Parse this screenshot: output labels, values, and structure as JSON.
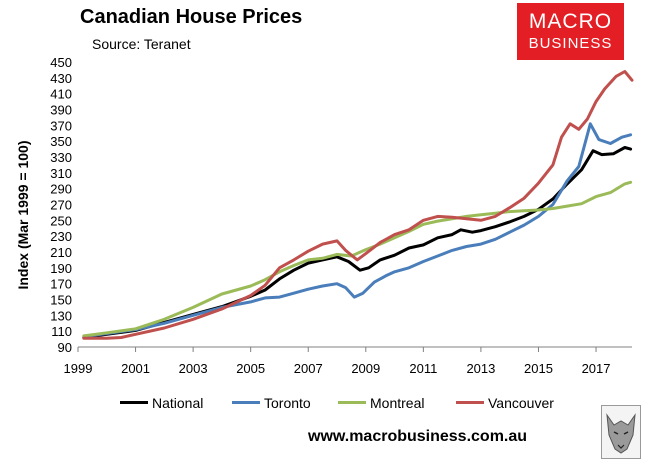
{
  "header": {
    "title": "Canadian House Prices",
    "subtitle": "Source: Teranet"
  },
  "logo": {
    "line1": "MACRO",
    "line2": "BUSINESS",
    "color": "#e31e24"
  },
  "footer": {
    "website": "www.macrobusiness.com.au",
    "wolf_icon": "wolf-logo-icon"
  },
  "chart_data": {
    "type": "line",
    "title": "Canadian House Prices",
    "ylabel": "Index (Mar 1999 = 100)",
    "xlabel": "",
    "xlim": [
      1999,
      2018.25
    ],
    "ylim": [
      90,
      450
    ],
    "yticks": [
      90,
      110,
      130,
      150,
      170,
      190,
      210,
      230,
      250,
      270,
      290,
      310,
      330,
      350,
      370,
      390,
      410,
      430,
      450
    ],
    "xticks": [
      1999,
      2001,
      2003,
      2005,
      2007,
      2009,
      2011,
      2013,
      2015,
      2017
    ],
    "grid": false,
    "legend_position": "bottom",
    "series": [
      {
        "name": "National",
        "color": "#000000",
        "points": [
          [
            1999.2,
            102
          ],
          [
            2000,
            106
          ],
          [
            2001,
            111
          ],
          [
            2002,
            121
          ],
          [
            2003,
            131
          ],
          [
            2004,
            141
          ],
          [
            2005,
            154
          ],
          [
            2005.5,
            162
          ],
          [
            2006,
            176
          ],
          [
            2006.5,
            187
          ],
          [
            2007,
            196
          ],
          [
            2007.5,
            200
          ],
          [
            2008,
            204
          ],
          [
            2008.4,
            198
          ],
          [
            2008.8,
            187
          ],
          [
            2009.1,
            190
          ],
          [
            2009.5,
            200
          ],
          [
            2010,
            206
          ],
          [
            2010.5,
            215
          ],
          [
            2011,
            219
          ],
          [
            2011.5,
            228
          ],
          [
            2012,
            232
          ],
          [
            2012.3,
            238
          ],
          [
            2012.7,
            235
          ],
          [
            2013,
            237
          ],
          [
            2013.5,
            242
          ],
          [
            2014,
            248
          ],
          [
            2014.5,
            255
          ],
          [
            2015,
            264
          ],
          [
            2015.5,
            277
          ],
          [
            2016,
            296
          ],
          [
            2016.5,
            314
          ],
          [
            2016.9,
            338
          ],
          [
            2017.2,
            333
          ],
          [
            2017.6,
            334
          ],
          [
            2018,
            342
          ],
          [
            2018.2,
            340
          ]
        ]
      },
      {
        "name": "Toronto",
        "color": "#4a7ebb",
        "points": [
          [
            1999.2,
            103
          ],
          [
            2000,
            107
          ],
          [
            2001,
            112
          ],
          [
            2002,
            120
          ],
          [
            2003,
            130
          ],
          [
            2004,
            140
          ],
          [
            2005,
            147
          ],
          [
            2005.5,
            152
          ],
          [
            2006,
            153
          ],
          [
            2006.5,
            158
          ],
          [
            2007,
            163
          ],
          [
            2007.5,
            167
          ],
          [
            2008,
            170
          ],
          [
            2008.3,
            165
          ],
          [
            2008.6,
            153
          ],
          [
            2008.9,
            158
          ],
          [
            2009.3,
            172
          ],
          [
            2009.7,
            180
          ],
          [
            2010,
            185
          ],
          [
            2010.5,
            190
          ],
          [
            2011,
            198
          ],
          [
            2011.5,
            205
          ],
          [
            2012,
            212
          ],
          [
            2012.5,
            217
          ],
          [
            2013,
            220
          ],
          [
            2013.5,
            226
          ],
          [
            2014,
            235
          ],
          [
            2014.5,
            244
          ],
          [
            2015,
            255
          ],
          [
            2015.5,
            270
          ],
          [
            2016,
            300
          ],
          [
            2016.4,
            318
          ],
          [
            2016.8,
            372
          ],
          [
            2017.1,
            352
          ],
          [
            2017.5,
            347
          ],
          [
            2017.9,
            355
          ],
          [
            2018.2,
            358
          ]
        ]
      },
      {
        "name": "Montreal",
        "color": "#9bbb59",
        "points": [
          [
            1999.2,
            104
          ],
          [
            2000,
            108
          ],
          [
            2001,
            113
          ],
          [
            2002,
            125
          ],
          [
            2003,
            140
          ],
          [
            2004,
            157
          ],
          [
            2005,
            167
          ],
          [
            2005.5,
            175
          ],
          [
            2006,
            185
          ],
          [
            2006.5,
            193
          ],
          [
            2007,
            200
          ],
          [
            2007.5,
            202
          ],
          [
            2008,
            207
          ],
          [
            2008.5,
            205
          ],
          [
            2009,
            213
          ],
          [
            2009.5,
            220
          ],
          [
            2010,
            228
          ],
          [
            2010.5,
            236
          ],
          [
            2011,
            245
          ],
          [
            2011.5,
            249
          ],
          [
            2012,
            252
          ],
          [
            2012.5,
            255
          ],
          [
            2013,
            257
          ],
          [
            2013.5,
            259
          ],
          [
            2014,
            261
          ],
          [
            2014.5,
            262
          ],
          [
            2015,
            263
          ],
          [
            2015.5,
            265
          ],
          [
            2016,
            268
          ],
          [
            2016.5,
            271
          ],
          [
            2017,
            280
          ],
          [
            2017.5,
            285
          ],
          [
            2018,
            296
          ],
          [
            2018.2,
            298
          ]
        ]
      },
      {
        "name": "Vancouver",
        "color": "#c0504d",
        "points": [
          [
            1999.2,
            101
          ],
          [
            2000,
            101
          ],
          [
            2000.5,
            102
          ],
          [
            2001,
            106
          ],
          [
            2002,
            114
          ],
          [
            2003,
            125
          ],
          [
            2004,
            138
          ],
          [
            2005,
            155
          ],
          [
            2005.5,
            168
          ],
          [
            2006,
            190
          ],
          [
            2006.5,
            200
          ],
          [
            2007,
            211
          ],
          [
            2007.5,
            220
          ],
          [
            2008,
            224
          ],
          [
            2008.3,
            212
          ],
          [
            2008.7,
            200
          ],
          [
            2009,
            208
          ],
          [
            2009.5,
            222
          ],
          [
            2010,
            232
          ],
          [
            2010.5,
            238
          ],
          [
            2011,
            250
          ],
          [
            2011.5,
            255
          ],
          [
            2012,
            254
          ],
          [
            2012.5,
            252
          ],
          [
            2013,
            250
          ],
          [
            2013.5,
            255
          ],
          [
            2014,
            266
          ],
          [
            2014.5,
            278
          ],
          [
            2015,
            297
          ],
          [
            2015.5,
            320
          ],
          [
            2015.8,
            355
          ],
          [
            2016.1,
            372
          ],
          [
            2016.4,
            365
          ],
          [
            2016.7,
            378
          ],
          [
            2017,
            400
          ],
          [
            2017.3,
            416
          ],
          [
            2017.7,
            432
          ],
          [
            2018,
            438
          ],
          [
            2018.25,
            427
          ]
        ]
      }
    ]
  }
}
